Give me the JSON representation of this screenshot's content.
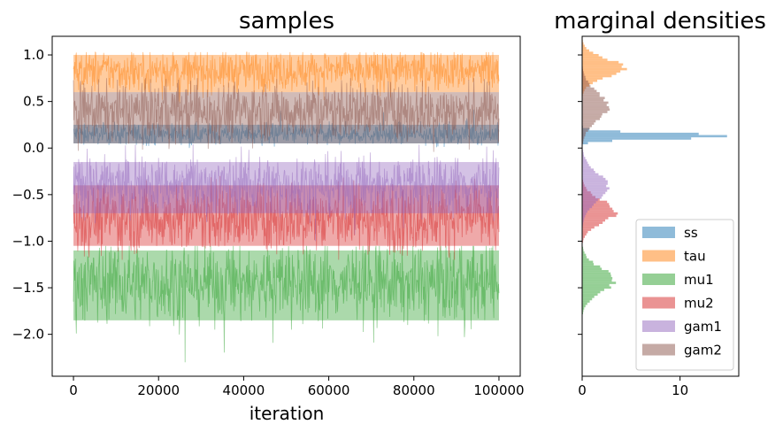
{
  "chart_data": [
    {
      "type": "line",
      "title": "samples",
      "xlabel": "iteration",
      "ylabel": "",
      "xlim": [
        -5000,
        105000
      ],
      "ylim": [
        -2.45,
        1.2
      ],
      "x_ticks": [
        0,
        20000,
        40000,
        60000,
        80000,
        100000
      ],
      "x_tick_labels": [
        "0",
        "20000",
        "40000",
        "60000",
        "80000",
        "100000"
      ],
      "y_ticks": [
        1.0,
        0.5,
        0.0,
        -0.5,
        -1.0,
        -1.5,
        -2.0
      ],
      "y_tick_labels": [
        "1.0",
        "0.5",
        "0.0",
        "−0.5",
        "−1.0",
        "−1.5",
        "−2.0"
      ],
      "grid": false,
      "n_iterations": 100000,
      "series": [
        {
          "name": "ss",
          "color": "#1f77b4",
          "typical_range": [
            0.05,
            0.25
          ],
          "center": 0.15,
          "min": 0.0,
          "max": 0.45
        },
        {
          "name": "tau",
          "color": "#ff7f0e",
          "typical_range": [
            0.6,
            1.0
          ],
          "center": 0.83,
          "min": 0.45,
          "max": 1.03
        },
        {
          "name": "mu1",
          "color": "#2ca02c",
          "typical_range": [
            -1.85,
            -1.1
          ],
          "center": -1.45,
          "min": -2.3,
          "max": -1.05
        },
        {
          "name": "mu2",
          "color": "#d62728",
          "typical_range": [
            -1.05,
            -0.4
          ],
          "center": -0.75,
          "min": -1.2,
          "max": -0.3
        },
        {
          "name": "gam1",
          "color": "#9467bd",
          "typical_range": [
            -0.7,
            -0.15
          ],
          "center": -0.4,
          "min": -1.0,
          "max": 0.05
        },
        {
          "name": "gam2",
          "color": "#8c564b",
          "typical_range": [
            0.05,
            0.6
          ],
          "center": 0.4,
          "min": -0.1,
          "max": 0.75
        }
      ]
    },
    {
      "type": "histogram",
      "orientation": "horizontal",
      "title": "marginal densities",
      "xlim": [
        0,
        16
      ],
      "x_ticks": [
        0,
        10
      ],
      "x_tick_labels": [
        "0",
        "10"
      ],
      "ylim": [
        -2.45,
        1.2
      ],
      "shared_y_with": "samples",
      "legend_position": "lower-right",
      "series": [
        {
          "name": "ss",
          "color": "#1f77b4",
          "peak_value": 0.13,
          "peak_density": 15.5,
          "spread": 0.03
        },
        {
          "name": "tau",
          "color": "#ff7f0e",
          "peak_value": 0.86,
          "peak_density": 4.2,
          "spread": 0.1
        },
        {
          "name": "mu1",
          "color": "#2ca02c",
          "peak_value": -1.42,
          "peak_density": 3.2,
          "spread": 0.13
        },
        {
          "name": "mu2",
          "color": "#d62728",
          "peak_value": -0.68,
          "peak_density": 3.4,
          "spread": 0.12
        },
        {
          "name": "gam1",
          "color": "#9467bd",
          "peak_value": -0.42,
          "peak_density": 2.6,
          "spread": 0.15
        },
        {
          "name": "gam2",
          "color": "#8c564b",
          "peak_value": 0.45,
          "peak_density": 2.6,
          "spread": 0.15
        }
      ]
    }
  ],
  "legend": {
    "items": [
      {
        "label": "ss",
        "color": "#1f77b4"
      },
      {
        "label": "tau",
        "color": "#ff7f0e"
      },
      {
        "label": "mu1",
        "color": "#2ca02c"
      },
      {
        "label": "mu2",
        "color": "#d62728"
      },
      {
        "label": "gam1",
        "color": "#9467bd"
      },
      {
        "label": "gam2",
        "color": "#8c564b"
      }
    ]
  }
}
